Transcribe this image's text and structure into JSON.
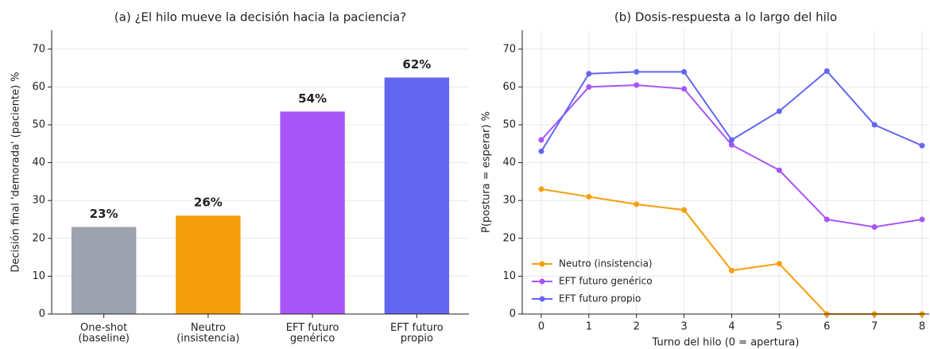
{
  "chart_data": [
    {
      "type": "bar",
      "title": "(a) ¿El hilo mueve la decisión hacia la paciencia?",
      "ylabel": "Decisión final 'demorada' (paciente)  %",
      "categories": [
        "One-shot\n(baseline)",
        "Neutro\n(insistencia)",
        "EFT futuro\ngenérico",
        "EFT futuro\npropio"
      ],
      "values": [
        23,
        26,
        53.5,
        62.5
      ],
      "value_labels": [
        "23%",
        "26%",
        "54%",
        "62%"
      ],
      "colors": [
        "#9ca3af",
        "#f59e0b",
        "#a855f7",
        "#6366f1"
      ],
      "ylim": [
        0,
        75
      ],
      "yticks": [
        0,
        10,
        20,
        30,
        40,
        50,
        60,
        70
      ],
      "grid": true
    },
    {
      "type": "line",
      "title": "(b) Dosis-respuesta a lo largo del hilo",
      "xlabel": "Turno del hilo (0 = apertura)",
      "ylabel": "P(postura = esperar)  %",
      "x": [
        0,
        1,
        2,
        3,
        4,
        5,
        6,
        7,
        8
      ],
      "series": [
        {
          "name": "Neutro (insistencia)",
          "color": "#f59e0b",
          "values": [
            33,
            31,
            29,
            27.5,
            11.5,
            13.3,
            0,
            0,
            0
          ]
        },
        {
          "name": "EFT futuro genérico",
          "color": "#a855f7",
          "values": [
            46,
            60,
            60.5,
            59.5,
            44.7,
            38,
            25,
            23,
            25
          ]
        },
        {
          "name": "EFT futuro propio",
          "color": "#6366f1",
          "values": [
            43,
            63.5,
            64,
            64,
            46,
            53.6,
            64.2,
            50,
            44.5
          ]
        }
      ],
      "xlim": [
        -0.4,
        8.15
      ],
      "xticks": [
        0,
        1,
        2,
        3,
        4,
        5,
        6,
        7,
        8
      ],
      "ylim": [
        0,
        75
      ],
      "yticks": [
        0,
        10,
        20,
        30,
        40,
        50,
        60,
        70
      ],
      "grid": true,
      "legend": "lower left"
    }
  ]
}
